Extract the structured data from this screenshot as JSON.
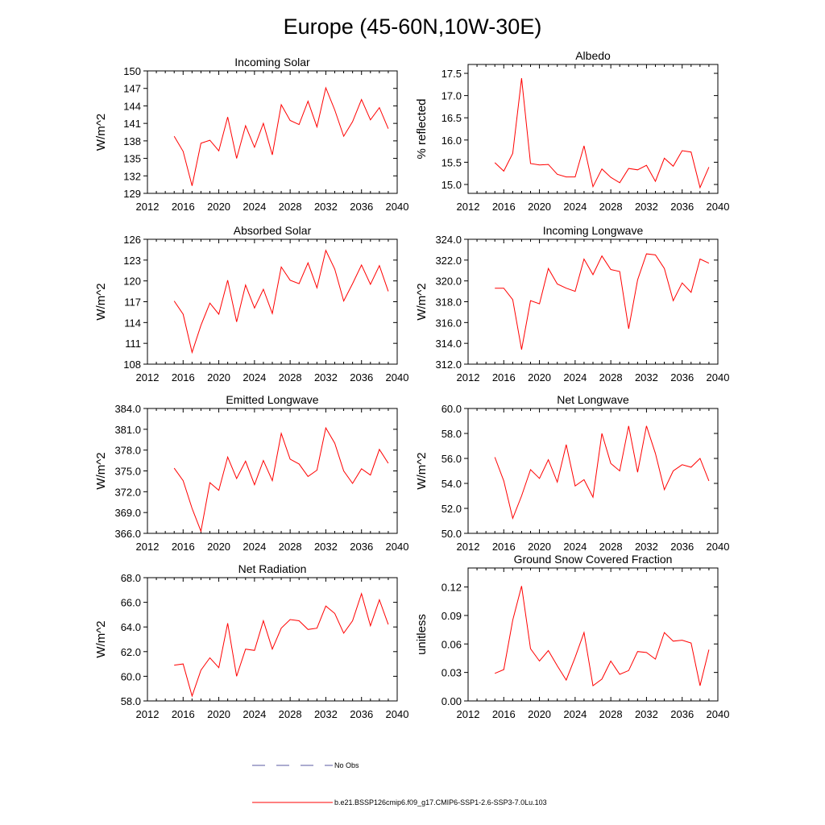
{
  "page": {
    "title": "Europe (45-60N,10W-30E)"
  },
  "legend": {
    "obs_label": "No Obs",
    "obs_color": "#5a5aa0",
    "model_label": "b.e21.BSSP126cmip6.f09_g17.CMIP6-SSP1-2.6-SSP3-7.0Lu.103",
    "model_color": "#ff0000"
  },
  "chart_data": [
    {
      "type": "line",
      "title": "Incoming Solar",
      "xlabel": "",
      "ylabel": "W/m^2",
      "xlim": [
        2012,
        2040
      ],
      "xticks": [
        2012,
        2016,
        2020,
        2024,
        2028,
        2032,
        2036,
        2040
      ],
      "xtick_labels": [
        "2012",
        "2016",
        "2020",
        "2024",
        "2028",
        "2032",
        "2036",
        "2040"
      ],
      "ylim": [
        129,
        150
      ],
      "yticks": [
        129,
        132,
        135,
        138,
        141,
        144,
        147,
        150
      ],
      "ytick_labels": [
        "129",
        "132",
        "135",
        "138",
        "141",
        "144",
        "147",
        "150"
      ],
      "grid": false,
      "x": [
        2015,
        2016,
        2017,
        2018,
        2019,
        2020,
        2021,
        2022,
        2023,
        2024,
        2025,
        2026,
        2027,
        2028,
        2029,
        2030,
        2031,
        2032,
        2033,
        2034,
        2035,
        2036,
        2037,
        2038,
        2039
      ],
      "series": [
        {
          "values": [
            138.8,
            136.2,
            130.3,
            137.6,
            138.1,
            136.3,
            142.1,
            135.0,
            140.6,
            136.9,
            141.0,
            135.6,
            144.2,
            141.5,
            140.8,
            144.8,
            140.4,
            147.1,
            143.3,
            138.8,
            141.3,
            145.1,
            141.6,
            143.7,
            140.1
          ],
          "color": "#ff0000"
        }
      ]
    },
    {
      "type": "line",
      "title": "Albedo",
      "xlabel": "",
      "ylabel": "% reflected",
      "xlim": [
        2012,
        2040
      ],
      "xticks": [
        2012,
        2016,
        2020,
        2024,
        2028,
        2032,
        2036,
        2040
      ],
      "xtick_labels": [
        "2012",
        "2016",
        "2020",
        "2024",
        "2028",
        "2032",
        "2036",
        "2040"
      ],
      "ylim": [
        14.8,
        17.7
      ],
      "yticks": [
        15.0,
        15.5,
        16.0,
        16.5,
        17.0,
        17.5
      ],
      "ytick_labels": [
        "15.0",
        "15.5",
        "16.0",
        "16.5",
        "17.0",
        "17.5"
      ],
      "grid": false,
      "x": [
        2015,
        2016,
        2017,
        2018,
        2019,
        2020,
        2021,
        2022,
        2023,
        2024,
        2025,
        2026,
        2027,
        2028,
        2029,
        2030,
        2031,
        2032,
        2033,
        2034,
        2035,
        2036,
        2037,
        2038,
        2039
      ],
      "series": [
        {
          "values": [
            15.49,
            15.3,
            15.7,
            17.39,
            15.47,
            15.44,
            15.45,
            15.23,
            15.17,
            15.17,
            15.87,
            14.95,
            15.35,
            15.16,
            15.04,
            15.36,
            15.33,
            15.43,
            15.07,
            15.59,
            15.41,
            15.76,
            15.73,
            14.93,
            15.39
          ],
          "color": "#ff0000"
        }
      ]
    },
    {
      "type": "line",
      "title": "Absorbed Solar",
      "xlabel": "",
      "ylabel": "W/m^2",
      "xlim": [
        2012,
        2040
      ],
      "xticks": [
        2012,
        2016,
        2020,
        2024,
        2028,
        2032,
        2036,
        2040
      ],
      "xtick_labels": [
        "2012",
        "2016",
        "2020",
        "2024",
        "2028",
        "2032",
        "2036",
        "2040"
      ],
      "ylim": [
        108,
        126
      ],
      "yticks": [
        108,
        111,
        114,
        117,
        120,
        123,
        126
      ],
      "ytick_labels": [
        "108",
        "111",
        "114",
        "117",
        "120",
        "123",
        "126"
      ],
      "grid": false,
      "x": [
        2015,
        2016,
        2017,
        2018,
        2019,
        2020,
        2021,
        2022,
        2023,
        2024,
        2025,
        2026,
        2027,
        2028,
        2029,
        2030,
        2031,
        2032,
        2033,
        2034,
        2035,
        2036,
        2037,
        2038,
        2039
      ],
      "series": [
        {
          "values": [
            117.1,
            115.2,
            109.7,
            113.6,
            116.8,
            115.2,
            120.1,
            114.1,
            119.4,
            116.1,
            118.8,
            115.3,
            122.0,
            120.1,
            119.6,
            122.6,
            119.0,
            124.4,
            121.7,
            117.1,
            119.6,
            122.3,
            119.5,
            122.2,
            118.5
          ],
          "color": "#ff0000"
        }
      ]
    },
    {
      "type": "line",
      "title": "Incoming Longwave",
      "xlabel": "",
      "ylabel": "W/m^2",
      "xlim": [
        2012,
        2040
      ],
      "xticks": [
        2012,
        2016,
        2020,
        2024,
        2028,
        2032,
        2036,
        2040
      ],
      "xtick_labels": [
        "2012",
        "2016",
        "2020",
        "2024",
        "2028",
        "2032",
        "2036",
        "2040"
      ],
      "ylim": [
        312.0,
        324.0
      ],
      "yticks": [
        312.0,
        314.0,
        316.0,
        318.0,
        320.0,
        322.0,
        324.0
      ],
      "ytick_labels": [
        "312.0",
        "314.0",
        "316.0",
        "318.0",
        "320.0",
        "322.0",
        "324.0"
      ],
      "grid": false,
      "x": [
        2015,
        2016,
        2017,
        2018,
        2019,
        2020,
        2021,
        2022,
        2023,
        2024,
        2025,
        2026,
        2027,
        2028,
        2029,
        2030,
        2031,
        2032,
        2033,
        2034,
        2035,
        2036,
        2037,
        2038,
        2039
      ],
      "series": [
        {
          "values": [
            319.3,
            319.3,
            318.2,
            313.4,
            318.1,
            317.8,
            321.2,
            319.7,
            319.3,
            319.0,
            322.1,
            320.6,
            322.4,
            321.1,
            320.9,
            315.4,
            320.1,
            322.6,
            322.5,
            321.2,
            318.1,
            319.8,
            318.9,
            322.1,
            321.7
          ],
          "color": "#ff0000"
        }
      ]
    },
    {
      "type": "line",
      "title": "Emitted Longwave",
      "xlabel": "",
      "ylabel": "W/m^2",
      "xlim": [
        2012,
        2040
      ],
      "xticks": [
        2012,
        2016,
        2020,
        2024,
        2028,
        2032,
        2036,
        2040
      ],
      "xtick_labels": [
        "2012",
        "2016",
        "2020",
        "2024",
        "2028",
        "2032",
        "2036",
        "2040"
      ],
      "ylim": [
        366.0,
        384.0
      ],
      "yticks": [
        366.0,
        369.0,
        372.0,
        375.0,
        378.0,
        381.0,
        384.0
      ],
      "ytick_labels": [
        "366.0",
        "369.0",
        "372.0",
        "375.0",
        "378.0",
        "381.0",
        "384.0"
      ],
      "grid": false,
      "x": [
        2015,
        2016,
        2017,
        2018,
        2019,
        2020,
        2021,
        2022,
        2023,
        2024,
        2025,
        2026,
        2027,
        2028,
        2029,
        2030,
        2031,
        2032,
        2033,
        2034,
        2035,
        2036,
        2037,
        2038,
        2039
      ],
      "series": [
        {
          "values": [
            375.4,
            373.6,
            369.6,
            366.3,
            373.3,
            372.2,
            377.0,
            373.9,
            376.4,
            373.0,
            376.5,
            373.6,
            380.4,
            376.7,
            376.0,
            374.2,
            375.1,
            381.2,
            379.0,
            375.0,
            373.2,
            375.3,
            374.4,
            378.1,
            376.1
          ],
          "color": "#ff0000"
        }
      ]
    },
    {
      "type": "line",
      "title": "Net Longwave",
      "xlabel": "",
      "ylabel": "W/m^2",
      "xlim": [
        2012,
        2040
      ],
      "xticks": [
        2012,
        2016,
        2020,
        2024,
        2028,
        2032,
        2036,
        2040
      ],
      "xtick_labels": [
        "2012",
        "2016",
        "2020",
        "2024",
        "2028",
        "2032",
        "2036",
        "2040"
      ],
      "ylim": [
        50.0,
        60.0
      ],
      "yticks": [
        50.0,
        52.0,
        54.0,
        56.0,
        58.0,
        60.0
      ],
      "ytick_labels": [
        "50.0",
        "52.0",
        "54.0",
        "56.0",
        "58.0",
        "60.0"
      ],
      "grid": false,
      "x": [
        2015,
        2016,
        2017,
        2018,
        2019,
        2020,
        2021,
        2022,
        2023,
        2024,
        2025,
        2026,
        2027,
        2028,
        2029,
        2030,
        2031,
        2032,
        2033,
        2034,
        2035,
        2036,
        2037,
        2038,
        2039
      ],
      "series": [
        {
          "values": [
            56.1,
            54.2,
            51.2,
            53.0,
            55.1,
            54.4,
            55.9,
            54.1,
            57.1,
            53.8,
            54.3,
            52.9,
            58.0,
            55.6,
            55.0,
            58.6,
            54.9,
            58.6,
            56.4,
            53.5,
            55.0,
            55.5,
            55.3,
            56.0,
            54.2
          ],
          "color": "#ff0000"
        }
      ]
    },
    {
      "type": "line",
      "title": "Net Radiation",
      "xlabel": "",
      "ylabel": "W/m^2",
      "xlim": [
        2012,
        2040
      ],
      "xticks": [
        2012,
        2016,
        2020,
        2024,
        2028,
        2032,
        2036,
        2040
      ],
      "xtick_labels": [
        "2012",
        "2016",
        "2020",
        "2024",
        "2028",
        "2032",
        "2036",
        "2040"
      ],
      "ylim": [
        58.0,
        68.0
      ],
      "yticks": [
        58.0,
        60.0,
        62.0,
        64.0,
        66.0,
        68.0
      ],
      "ytick_labels": [
        "58.0",
        "60.0",
        "62.0",
        "64.0",
        "66.0",
        "68.0"
      ],
      "grid": false,
      "x": [
        2015,
        2016,
        2017,
        2018,
        2019,
        2020,
        2021,
        2022,
        2023,
        2024,
        2025,
        2026,
        2027,
        2028,
        2029,
        2030,
        2031,
        2032,
        2033,
        2034,
        2035,
        2036,
        2037,
        2038,
        2039
      ],
      "series": [
        {
          "values": [
            60.9,
            61.0,
            58.4,
            60.5,
            61.5,
            60.7,
            64.3,
            60.0,
            62.2,
            62.1,
            64.5,
            62.2,
            63.9,
            64.6,
            64.5,
            63.8,
            63.9,
            65.7,
            65.1,
            63.5,
            64.5,
            66.7,
            64.1,
            66.2,
            64.2
          ],
          "color": "#ff0000"
        }
      ]
    },
    {
      "type": "line",
      "title": "Ground Snow Covered Fraction",
      "xlabel": "",
      "ylabel": "unitless",
      "xlim": [
        2012,
        2040
      ],
      "xticks": [
        2012,
        2016,
        2020,
        2024,
        2028,
        2032,
        2036,
        2040
      ],
      "xtick_labels": [
        "2012",
        "2016",
        "2020",
        "2024",
        "2028",
        "2032",
        "2036",
        "2040"
      ],
      "ylim": [
        0.0,
        0.14
      ],
      "yticks": [
        0.0,
        0.03,
        0.06,
        0.09,
        0.12
      ],
      "ytick_labels": [
        "0.00",
        "0.03",
        "0.06",
        "0.09",
        "0.12"
      ],
      "grid": false,
      "x": [
        2015,
        2016,
        2017,
        2018,
        2019,
        2020,
        2021,
        2022,
        2023,
        2024,
        2025,
        2026,
        2027,
        2028,
        2029,
        2030,
        2031,
        2032,
        2033,
        2034,
        2035,
        2036,
        2037,
        2038,
        2039
      ],
      "series": [
        {
          "values": [
            0.029,
            0.033,
            0.085,
            0.121,
            0.055,
            0.042,
            0.053,
            0.037,
            0.022,
            0.046,
            0.072,
            0.016,
            0.023,
            0.042,
            0.028,
            0.032,
            0.052,
            0.051,
            0.044,
            0.072,
            0.063,
            0.064,
            0.061,
            0.016,
            0.054
          ],
          "color": "#ff0000"
        }
      ]
    }
  ]
}
